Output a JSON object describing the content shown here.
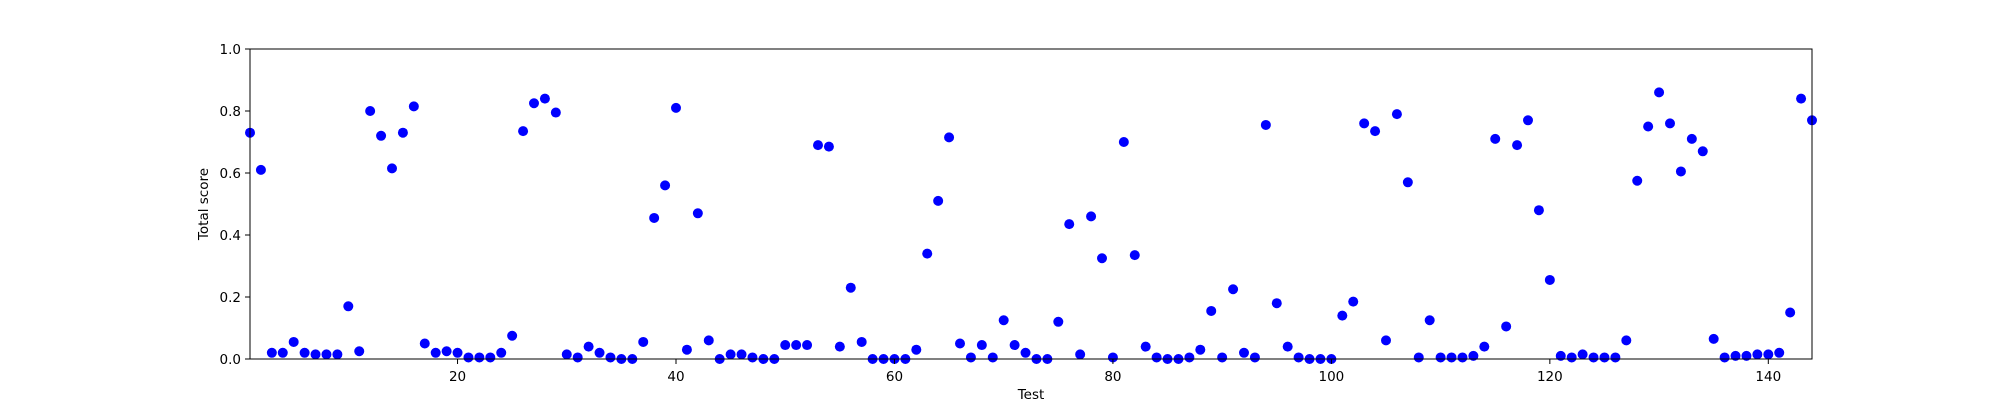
{
  "chart_data": {
    "type": "scatter",
    "xlabel": "Test",
    "ylabel": "Total score",
    "xlim": [
      1,
      144
    ],
    "ylim": [
      0,
      1.0
    ],
    "xticks": [
      20,
      40,
      60,
      80,
      100,
      120,
      140
    ],
    "yticks": [
      0.0,
      0.2,
      0.4,
      0.6,
      0.8,
      1.0
    ],
    "ytick_labels": [
      "0.0",
      "0.2",
      "0.4",
      "0.6",
      "0.8",
      "1.0"
    ],
    "grid": false,
    "marker_color": "#0000ff",
    "x": [
      1,
      2,
      3,
      4,
      5,
      6,
      7,
      8,
      9,
      10,
      11,
      12,
      13,
      14,
      15,
      16,
      17,
      18,
      19,
      20,
      21,
      22,
      23,
      24,
      25,
      26,
      27,
      28,
      29,
      30,
      31,
      32,
      33,
      34,
      35,
      36,
      37,
      38,
      39,
      40,
      41,
      42,
      43,
      44,
      45,
      46,
      47,
      48,
      49,
      50,
      51,
      52,
      53,
      54,
      55,
      56,
      57,
      58,
      59,
      60,
      61,
      62,
      63,
      64,
      65,
      66,
      67,
      68,
      69,
      70,
      71,
      72,
      73,
      74,
      75,
      76,
      77,
      78,
      79,
      80,
      81,
      82,
      83,
      84,
      85,
      86,
      87,
      88,
      89,
      90,
      91,
      92,
      93,
      94,
      95,
      96,
      97,
      98,
      99,
      100,
      101,
      102,
      103,
      104,
      105,
      106,
      107,
      108,
      109,
      110,
      111,
      112,
      113,
      114,
      115,
      116,
      117,
      118,
      119,
      120,
      121,
      122,
      123,
      124,
      125,
      126,
      127,
      128,
      129,
      130,
      131,
      132,
      133,
      134,
      135,
      136,
      137,
      138,
      139,
      140,
      141,
      142,
      143,
      144
    ],
    "y": [
      0.73,
      0.61,
      0.02,
      0.02,
      0.055,
      0.02,
      0.015,
      0.015,
      0.015,
      0.17,
      0.025,
      0.8,
      0.72,
      0.615,
      0.73,
      0.815,
      0.05,
      0.02,
      0.025,
      0.02,
      0.005,
      0.005,
      0.005,
      0.02,
      0.075,
      0.735,
      0.825,
      0.84,
      0.795,
      0.015,
      0.005,
      0.04,
      0.02,
      0.005,
      0.0,
      0.0,
      0.055,
      0.455,
      0.56,
      0.81,
      0.03,
      0.47,
      0.06,
      0.0,
      0.015,
      0.015,
      0.005,
      0.0,
      0.0,
      0.045,
      0.045,
      0.045,
      0.69,
      0.685,
      0.04,
      0.23,
      0.055,
      0.0,
      0.0,
      0.0,
      0.0,
      0.03,
      0.34,
      0.51,
      0.715,
      0.05,
      0.005,
      0.045,
      0.005,
      0.125,
      0.045,
      0.02,
      0.0,
      0.0,
      0.12,
      0.435,
      0.015,
      0.46,
      0.325,
      0.005,
      0.7,
      0.335,
      0.04,
      0.005,
      0.0,
      0.0,
      0.005,
      0.03,
      0.155,
      0.005,
      0.225,
      0.02,
      0.005,
      0.755,
      0.18,
      0.04,
      0.005,
      0.0,
      0.0,
      0.0,
      0.14,
      0.185,
      0.76,
      0.735,
      0.06,
      0.79,
      0.57,
      0.005,
      0.125,
      0.005,
      0.005,
      0.005,
      0.01,
      0.04,
      0.71,
      0.105,
      0.69,
      0.77,
      0.48,
      0.255,
      0.01,
      0.005,
      0.015,
      0.005,
      0.005,
      0.005,
      0.06,
      0.575,
      0.75,
      0.86,
      0.76,
      0.605,
      0.71,
      0.67,
      0.065,
      0.005,
      0.01,
      0.01,
      0.015,
      0.015,
      0.02,
      0.15,
      0.84,
      0.77
    ]
  }
}
